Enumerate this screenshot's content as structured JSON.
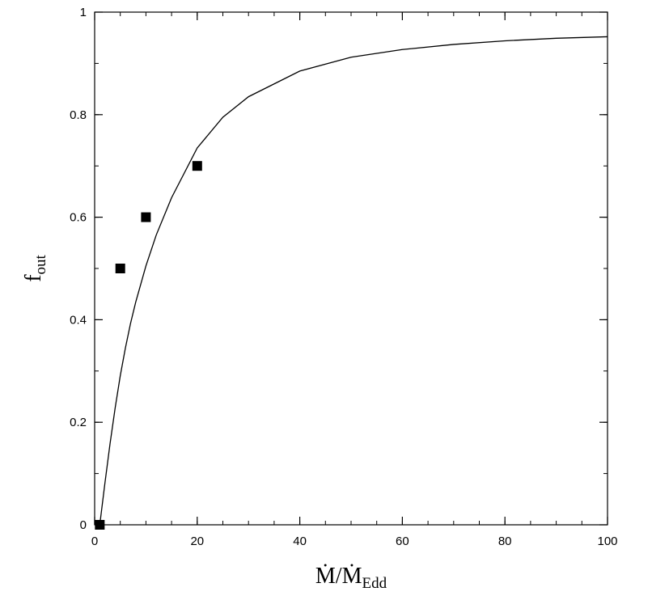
{
  "chart_data": {
    "type": "scatter",
    "title": "",
    "xlabel": {
      "main": "Ṁ/Ṁ",
      "sub": "Edd"
    },
    "ylabel": {
      "main": "f",
      "sub": "out"
    },
    "xlim": [
      0,
      100
    ],
    "ylim": [
      0,
      1
    ],
    "x_ticks": [
      {
        "value": 0,
        "label": "0"
      },
      {
        "value": 20,
        "label": "20"
      },
      {
        "value": 40,
        "label": "40"
      },
      {
        "value": 60,
        "label": "60"
      },
      {
        "value": 80,
        "label": "80"
      },
      {
        "value": 100,
        "label": "100"
      }
    ],
    "y_ticks": [
      {
        "value": 0,
        "label": "0"
      },
      {
        "value": 0.2,
        "label": "0.2"
      },
      {
        "value": 0.4,
        "label": "0.4"
      },
      {
        "value": 0.6,
        "label": "0.6"
      },
      {
        "value": 0.8,
        "label": "0.8"
      },
      {
        "value": 1,
        "label": "1"
      }
    ],
    "x_minor_step": 5,
    "y_minor_step": 0.1,
    "grid": false,
    "series": [
      {
        "kind": "points",
        "marker": "square",
        "color": "#000000",
        "x": [
          1,
          5,
          10,
          20
        ],
        "y": [
          0,
          0.5,
          0.6,
          0.7
        ]
      },
      {
        "kind": "line",
        "color": "#000000",
        "x": [
          1,
          2,
          3,
          4,
          5,
          6,
          7,
          8,
          10,
          12,
          15,
          20,
          25,
          30,
          40,
          50,
          60,
          70,
          80,
          90,
          100
        ],
        "y": [
          0,
          0.081,
          0.158,
          0.228,
          0.291,
          0.345,
          0.393,
          0.434,
          0.505,
          0.565,
          0.638,
          0.735,
          0.795,
          0.835,
          0.885,
          0.912,
          0.927,
          0.937,
          0.944,
          0.949,
          0.952
        ]
      }
    ]
  }
}
